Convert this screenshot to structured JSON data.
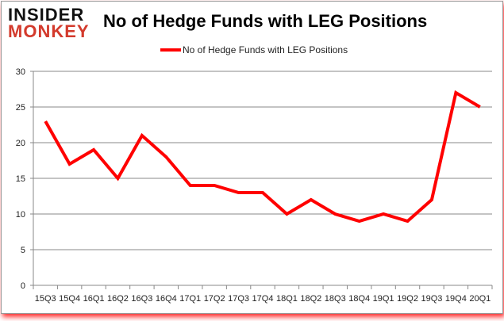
{
  "logo": {
    "line1": "INSIDER",
    "line2": "MONKEY"
  },
  "chart_data": {
    "type": "line",
    "title": "No of Hedge Funds with LEG Positions",
    "categories": [
      "15Q3",
      "15Q4",
      "16Q1",
      "16Q2",
      "16Q3",
      "16Q4",
      "17Q1",
      "17Q2",
      "17Q3",
      "17Q4",
      "18Q1",
      "18Q2",
      "18Q3",
      "18Q4",
      "19Q1",
      "19Q2",
      "19Q3",
      "19Q4",
      "20Q1"
    ],
    "series": [
      {
        "name": "No of Hedge Funds with LEG Positions",
        "color": "#ff0000",
        "values": [
          23,
          17,
          19,
          15,
          21,
          18,
          14,
          14,
          13,
          13,
          10,
          12,
          10,
          9,
          10,
          9,
          12,
          27,
          25
        ]
      }
    ],
    "ylim": [
      0,
      30
    ],
    "yticks": [
      0,
      5,
      10,
      15,
      20,
      25,
      30
    ],
    "grid": true,
    "legend": "top"
  }
}
